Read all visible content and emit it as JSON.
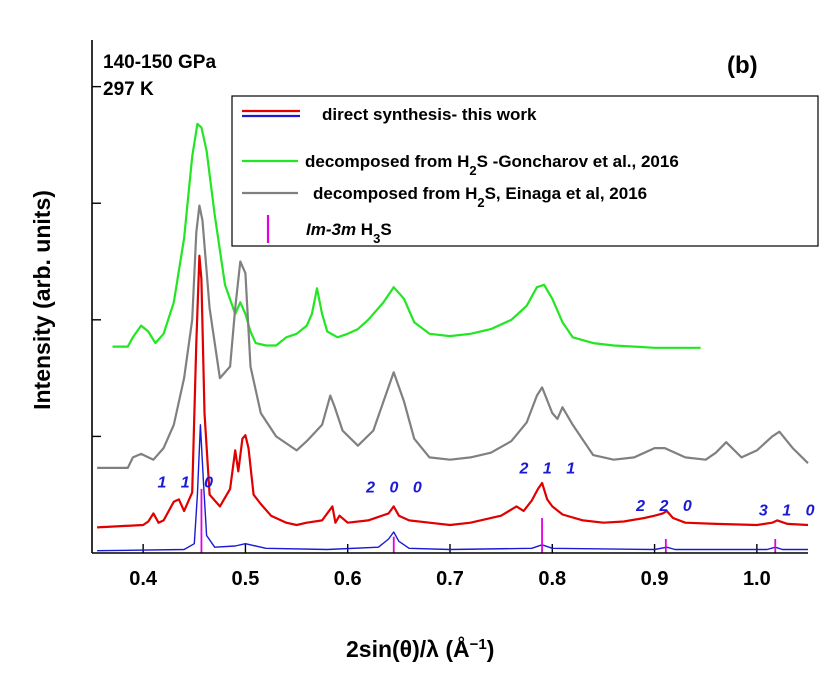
{
  "chart_data": {
    "type": "line",
    "panel_label": "(b)",
    "conditions": [
      "140-150 GPa",
      "297 K"
    ],
    "xlabel": "2sin(θ)/λ (Å",
    "xlabel_exponent": "−1",
    "xlabel_close": ")",
    "ylabel": "Intensity (arb. units)",
    "xlim": [
      0.35,
      1.05
    ],
    "ylim": [
      0,
      4.4
    ],
    "x_ticks": [
      0.4,
      0.5,
      0.6,
      0.7,
      0.8,
      0.9,
      1.0
    ],
    "x_tick_labels": [
      "0.4",
      "0.5",
      "0.6",
      "0.7",
      "0.8",
      "0.9",
      "1.0"
    ],
    "y_ticks": [
      1,
      2,
      3,
      4
    ],
    "legend": [
      {
        "text": "direct synthesis- this work",
        "style": "double",
        "colors": [
          "#e00000",
          "#1a1ad6"
        ]
      },
      {
        "text_parts": [
          {
            "t": "decomposed from H"
          },
          {
            "t": "2",
            "sub": true
          },
          {
            "t": "S -Goncharov et al., 2016"
          }
        ],
        "style": "line",
        "color": "#22e622"
      },
      {
        "text_parts": [
          {
            "t": "decomposed from H"
          },
          {
            "t": "2",
            "sub": true
          },
          {
            "t": "S, Einaga et al, 2016"
          }
        ],
        "style": "line",
        "color": "#808080"
      },
      {
        "text_parts": [
          {
            "t": "Im-3m",
            "italic": true
          },
          {
            "t": " H"
          },
          {
            "t": "3",
            "sub": true
          },
          {
            "t": "S"
          }
        ],
        "style": "tick",
        "color": "#e000e0"
      }
    ],
    "hkl_labels": [
      {
        "text": "1 1 0",
        "x": 0.414,
        "y": 0.56
      },
      {
        "text": "2 0 0",
        "x": 0.618,
        "y": 0.52
      },
      {
        "text": "2 1 1",
        "x": 0.768,
        "y": 0.68
      },
      {
        "text": "2 2 0",
        "x": 0.882,
        "y": 0.36
      },
      {
        "text": "3 1 0",
        "x": 1.002,
        "y": 0.32
      }
    ],
    "im3m_ticks": [
      {
        "x": 0.457,
        "height": 0.55
      },
      {
        "x": 0.645,
        "height": 0.14
      },
      {
        "x": 0.79,
        "height": 0.3
      },
      {
        "x": 0.911,
        "height": 0.12
      },
      {
        "x": 1.018,
        "height": 0.12
      }
    ],
    "series": [
      {
        "name": "decomposed from H2S -Goncharov et al., 2016",
        "color": "#22e622",
        "x": [
          0.37,
          0.385,
          0.39,
          0.398,
          0.405,
          0.412,
          0.42,
          0.43,
          0.44,
          0.448,
          0.453,
          0.457,
          0.462,
          0.47,
          0.48,
          0.49,
          0.495,
          0.5,
          0.505,
          0.51,
          0.52,
          0.53,
          0.54,
          0.55,
          0.56,
          0.565,
          0.57,
          0.575,
          0.58,
          0.59,
          0.6,
          0.61,
          0.62,
          0.635,
          0.645,
          0.655,
          0.665,
          0.68,
          0.7,
          0.72,
          0.74,
          0.76,
          0.775,
          0.785,
          0.792,
          0.8,
          0.81,
          0.82,
          0.84,
          0.86,
          0.88,
          0.9,
          0.92,
          0.945
        ],
        "y": [
          1.77,
          1.77,
          1.85,
          1.95,
          1.9,
          1.8,
          1.88,
          2.15,
          2.7,
          3.4,
          3.68,
          3.65,
          3.45,
          2.9,
          2.3,
          2.05,
          2.15,
          2.05,
          1.9,
          1.8,
          1.78,
          1.78,
          1.85,
          1.88,
          1.95,
          2.05,
          2.27,
          2.05,
          1.9,
          1.85,
          1.88,
          1.92,
          2.0,
          2.15,
          2.28,
          2.18,
          1.98,
          1.88,
          1.86,
          1.88,
          1.92,
          2.0,
          2.12,
          2.28,
          2.3,
          2.18,
          1.98,
          1.85,
          1.8,
          1.78,
          1.77,
          1.76,
          1.76,
          1.76
        ]
      },
      {
        "name": "decomposed from H2S, Einaga et al, 2016",
        "color": "#808080",
        "x": [
          0.355,
          0.385,
          0.39,
          0.398,
          0.41,
          0.42,
          0.43,
          0.44,
          0.448,
          0.452,
          0.455,
          0.458,
          0.465,
          0.475,
          0.485,
          0.49,
          0.495,
          0.5,
          0.505,
          0.515,
          0.53,
          0.55,
          0.56,
          0.575,
          0.583,
          0.587,
          0.595,
          0.61,
          0.625,
          0.635,
          0.645,
          0.655,
          0.665,
          0.68,
          0.7,
          0.72,
          0.74,
          0.76,
          0.775,
          0.785,
          0.79,
          0.8,
          0.805,
          0.81,
          0.82,
          0.84,
          0.86,
          0.88,
          0.9,
          0.91,
          0.93,
          0.95,
          0.96,
          0.97,
          0.985,
          1.0,
          1.015,
          1.022,
          1.035,
          1.05
        ],
        "y": [
          0.73,
          0.73,
          0.82,
          0.85,
          0.8,
          0.9,
          1.1,
          1.5,
          2.0,
          2.75,
          2.98,
          2.85,
          2.1,
          1.5,
          1.6,
          2.1,
          2.5,
          2.4,
          1.6,
          1.2,
          1.0,
          0.88,
          0.96,
          1.1,
          1.35,
          1.26,
          1.05,
          0.92,
          1.05,
          1.3,
          1.55,
          1.3,
          0.98,
          0.82,
          0.8,
          0.82,
          0.86,
          0.96,
          1.12,
          1.35,
          1.42,
          1.2,
          1.15,
          1.25,
          1.1,
          0.84,
          0.8,
          0.82,
          0.9,
          0.9,
          0.82,
          0.8,
          0.86,
          0.95,
          0.82,
          0.88,
          1.0,
          1.04,
          0.9,
          0.77
        ]
      },
      {
        "name": "direct synthesis- this work (red)",
        "color": "#e00000",
        "x": [
          0.355,
          0.4,
          0.405,
          0.41,
          0.415,
          0.42,
          0.43,
          0.435,
          0.44,
          0.448,
          0.452,
          0.455,
          0.457,
          0.46,
          0.465,
          0.475,
          0.485,
          0.49,
          0.493,
          0.497,
          0.5,
          0.503,
          0.508,
          0.515,
          0.525,
          0.54,
          0.55,
          0.56,
          0.575,
          0.585,
          0.588,
          0.592,
          0.6,
          0.62,
          0.64,
          0.645,
          0.65,
          0.66,
          0.68,
          0.7,
          0.72,
          0.75,
          0.765,
          0.772,
          0.78,
          0.786,
          0.79,
          0.795,
          0.8,
          0.81,
          0.83,
          0.85,
          0.87,
          0.89,
          0.9,
          0.908,
          0.912,
          0.918,
          0.93,
          0.96,
          1.0,
          1.015,
          1.02,
          1.03,
          1.05
        ],
        "y": [
          0.22,
          0.24,
          0.27,
          0.34,
          0.26,
          0.28,
          0.44,
          0.46,
          0.36,
          0.52,
          1.8,
          2.55,
          2.35,
          1.2,
          0.5,
          0.4,
          0.55,
          0.88,
          0.7,
          0.98,
          1.01,
          0.9,
          0.5,
          0.42,
          0.32,
          0.26,
          0.24,
          0.26,
          0.28,
          0.4,
          0.26,
          0.32,
          0.26,
          0.28,
          0.34,
          0.4,
          0.32,
          0.28,
          0.26,
          0.24,
          0.26,
          0.32,
          0.4,
          0.36,
          0.45,
          0.55,
          0.6,
          0.46,
          0.4,
          0.33,
          0.28,
          0.26,
          0.27,
          0.3,
          0.32,
          0.34,
          0.36,
          0.3,
          0.26,
          0.25,
          0.24,
          0.26,
          0.28,
          0.25,
          0.24
        ]
      },
      {
        "name": "direct synthesis- this work (blue)",
        "color": "#1a1ad6",
        "x": [
          0.355,
          0.44,
          0.45,
          0.453,
          0.456,
          0.459,
          0.462,
          0.47,
          0.49,
          0.5,
          0.52,
          0.58,
          0.63,
          0.64,
          0.645,
          0.65,
          0.66,
          0.7,
          0.78,
          0.79,
          0.8,
          0.9,
          0.912,
          0.92,
          1.01,
          1.018,
          1.025,
          1.05
        ],
        "y": [
          0.02,
          0.03,
          0.08,
          0.5,
          1.1,
          0.6,
          0.15,
          0.05,
          0.06,
          0.08,
          0.04,
          0.03,
          0.05,
          0.12,
          0.18,
          0.1,
          0.04,
          0.03,
          0.04,
          0.07,
          0.04,
          0.03,
          0.05,
          0.03,
          0.03,
          0.05,
          0.03,
          0.03
        ]
      }
    ]
  }
}
